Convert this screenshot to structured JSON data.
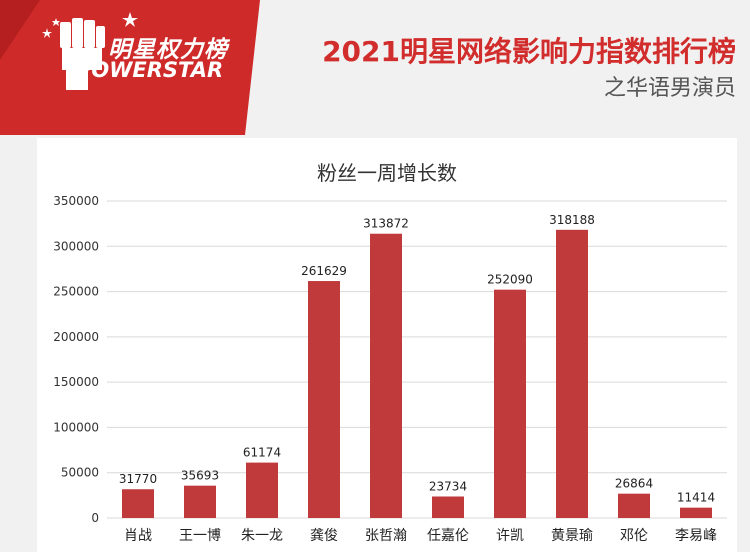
{
  "logo": {
    "cn_text": "明星权力榜",
    "en_text": "POWERSTAR"
  },
  "header": {
    "title": "2021明星网络影响力指数排行榜",
    "subtitle": "之华语男演员"
  },
  "colors": {
    "brand_red": "#d22d2d",
    "bar": "#c0393b",
    "grid": "#d9d9d9"
  },
  "chart_data": {
    "type": "bar",
    "title": "粉丝一周增长数",
    "categories": [
      "肖战",
      "王一博",
      "朱一龙",
      "龚俊",
      "张哲瀚",
      "任嘉伦",
      "许凯",
      "黄景瑜",
      "邓伦",
      "李易峰"
    ],
    "values": [
      31770,
      35693,
      61174,
      261629,
      313872,
      23734,
      252090,
      318188,
      26864,
      11414
    ],
    "yticks": [
      "0",
      "50000",
      "100000",
      "150000",
      "200000",
      "250000",
      "300000",
      "350000"
    ],
    "ylim": [
      0,
      350000
    ],
    "grid": true,
    "data_labels": true
  }
}
